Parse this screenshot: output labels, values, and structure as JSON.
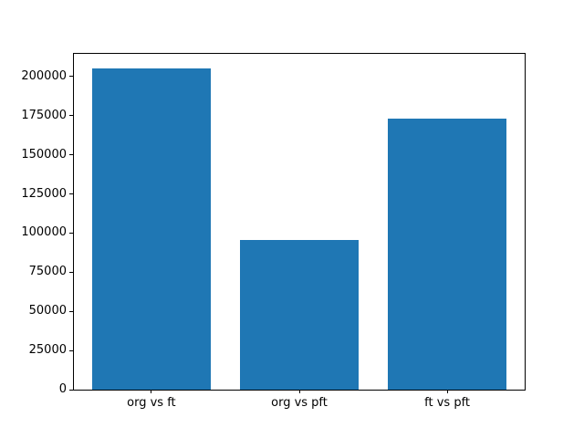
{
  "figure": {
    "background": "#ffffff",
    "spine_color": "#000000",
    "text_color": "#000000"
  },
  "chart_data": {
    "type": "bar",
    "title": "",
    "xlabel": "",
    "ylabel": "",
    "categories": [
      "org vs ft",
      "org vs pft",
      "ft vs pft"
    ],
    "values": [
      205000,
      95500,
      173000
    ],
    "bar_color": "#1f77b4",
    "bar_width": 0.8,
    "xlim": [
      -0.53,
      2.53
    ],
    "ylim": [
      0,
      215250
    ],
    "yticks": [
      0,
      25000,
      50000,
      75000,
      100000,
      125000,
      150000,
      175000,
      200000
    ],
    "ytick_labels": [
      "0",
      "25000",
      "50000",
      "75000",
      "100000",
      "125000",
      "150000",
      "175000",
      "200000"
    ],
    "grid": false,
    "legend": "none"
  }
}
